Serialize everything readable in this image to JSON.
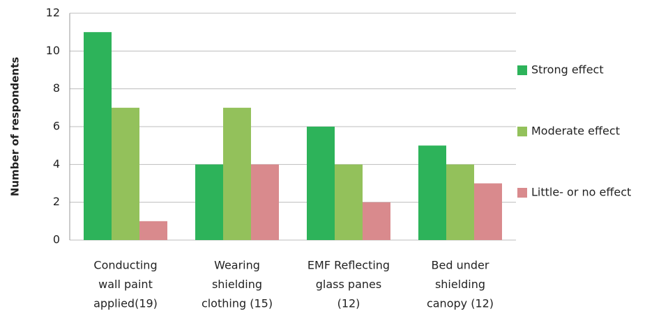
{
  "chart_data": {
    "type": "bar",
    "y_label": "Number of respondents",
    "categories": [
      [
        "Conducting",
        "wall paint",
        "applied(19)"
      ],
      [
        "Wearing",
        "shielding",
        "clothing (15)"
      ],
      [
        "EMF Reflecting",
        "glass panes",
        "(12)"
      ],
      [
        "Bed under",
        "shielding",
        "canopy (12)"
      ]
    ],
    "series": [
      {
        "name": "Strong effect",
        "color": "#2db35a",
        "values": [
          11,
          4,
          6,
          5
        ]
      },
      {
        "name": "Moderate effect",
        "color": "#93c15b",
        "values": [
          7,
          7,
          4,
          4
        ]
      },
      {
        "name": "Little- or no effect",
        "color": "#d98a8d",
        "values": [
          1,
          4,
          2,
          3
        ]
      }
    ],
    "ylim": [
      0,
      12
    ],
    "yticks": [
      0,
      2,
      4,
      6,
      8,
      10,
      12
    ],
    "grid": true,
    "legend": "right"
  }
}
